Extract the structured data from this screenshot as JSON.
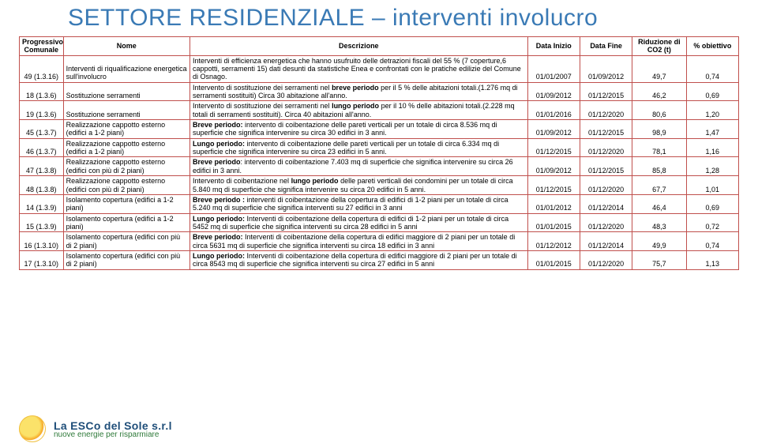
{
  "title": "SETTORE RESIDENZIALE – interventi involucro",
  "columns": [
    "Progressivo Comunale",
    "Nome",
    "Descrizione",
    "Data Inizio",
    "Data Fine",
    "Riduzione di CO2 (t)",
    "% obiettivo"
  ],
  "rows": [
    {
      "prog": "49 (1.3.16)",
      "nome": "Interventi di riqualificazione energetica sull'involucro",
      "desc": "Interventi di efficienza energetica che hanno usufruito delle detrazioni fiscali del 55 % (7 coperture,6 cappotti, serramenti 15) dati desunti da statistiche Enea e confrontati con le pratiche edilizie del Comune di Osnago.",
      "di": "01/01/2007",
      "df": "01/09/2012",
      "co2": "49,7",
      "obj": "0,74"
    },
    {
      "prog": "18 (1.3.6)",
      "nome": "Sostituzione serramenti",
      "desc_html": "Intervento di sostituzione dei serramenti nel <b>breve periodo</b> per il 5 % delle abitazioni totali.(1.276 mq di serramenti sostituiti) Circa 30 abitazione all'anno.",
      "di": "01/09/2012",
      "df": "01/12/2015",
      "co2": "46,2",
      "obj": "0,69"
    },
    {
      "prog": "19 (1.3.6)",
      "nome": "Sostituzione serramenti",
      "desc_html": "Intervento di sostituzione dei serramenti nel <b>lungo periodo</b> per il 10 % delle abitazioni totali.(2.228 mq totali di serramenti sostituiti). Circa 40 abitazioni all'anno.",
      "di": "01/01/2016",
      "df": "01/12/2020",
      "co2": "80,6",
      "obj": "1,20"
    },
    {
      "prog": "45 (1.3.7)",
      "nome": "Realizzazione cappotto esterno (edifici a 1-2 piani)",
      "desc_html": "<b>Breve periodo:</b> intervento di coibentazione delle pareti verticali per un totale di circa 8.536  mq di superficie che significa intervenire su circa 30 edifici in 3 anni.",
      "di": "01/09/2012",
      "df": "01/12/2015",
      "co2": "98,9",
      "obj": "1,47"
    },
    {
      "prog": "46 (1.3.7)",
      "nome": "Realizzazione cappotto esterno (edifici a 1-2 piani)",
      "desc_html": "<b>Lungo periodo:</b> intervento di coibentazione delle pareti verticali per un totale di circa 6.334 mq di superficie che significa intervenire su circa 23 edifici in 5 anni.",
      "di": "01/12/2015",
      "df": "01/12/2020",
      "co2": "78,1",
      "obj": "1,16"
    },
    {
      "prog": "47 (1.3.8)",
      "nome": "Realizzazione cappotto esterno (edifici con più di 2 piani)",
      "desc_html": "<b>Breve periodo</b>: intervento di coibentazione 7.403 mq di superficie che significa intervenire su circa 26 edifici in 3 anni.",
      "di": "01/09/2012",
      "df": "01/12/2015",
      "co2": "85,8",
      "obj": "1,28"
    },
    {
      "prog": "48 (1.3.8)",
      "nome": "Realizzazione cappotto esterno (edifici con più di 2 piani)",
      "desc_html": "Intervento di coibentazione nel <b>lungo periodo</b> delle pareti verticali dei condomini per un totale di circa 5.840 mq di superficie che significa intervenire su circa 20 edifici in 5 anni.",
      "di": "01/12/2015",
      "df": "01/12/2020",
      "co2": "67,7",
      "obj": "1,01"
    },
    {
      "prog": "14 (1.3.9)",
      "nome": "Isolamento copertura (edifici a 1-2 piani)",
      "desc_html": "<b>Breve periodo :</b> interventi di coibentazione della copertura di edifici di 1-2 piani per un totale di circa 5.240 mq di superficie che significa interventi su 27 edifici in 3 anni",
      "di": "01/01/2012",
      "df": "01/12/2014",
      "co2": "46,4",
      "obj": "0,69"
    },
    {
      "prog": "15 (1.3.9)",
      "nome": "Isolamento copertura (edifici a 1-2 piani)",
      "desc_html": "<b>Lungo periodo:</b> Interventi di coibentazione della copertura di edifici di 1-2 piani per un totale di circa 5452 mq di superficie che significa interventi su circa 28 edifici in 5 anni",
      "di": "01/01/2015",
      "df": "01/12/2020",
      "co2": "48,3",
      "obj": "0,72"
    },
    {
      "prog": "16 (1.3.10)",
      "nome": "Isolamento copertura (edifici con più di 2 piani)",
      "desc_html": "<b>Breve periodo:</b> Interventi di coibentazione della copertura di edifici maggiore di 2 piani per un totale di circa 5631 mq di superficie che significa interventi su circa 18 edifici in 3 anni",
      "di": "01/12/2012",
      "df": "01/12/2014",
      "co2": "49,9",
      "obj": "0,74"
    },
    {
      "prog": "17 (1.3.10)",
      "nome": "Isolamento copertura (edifici con più di 2 piani)",
      "desc_html": "<b>Lungo periodo:</b> Interventi di coibentazione della copertura di edifici maggiore di 2 piani per un totale di circa 8543 mq di superficie che significa interventi su circa  27 edifici in 5 anni",
      "di": "01/01/2015",
      "df": "01/12/2020",
      "co2": "75,7",
      "obj": "1,13"
    }
  ],
  "brand": {
    "name": "La ESCo del Sole s.r.l",
    "tag": "nuove energie per risparmiare"
  },
  "style": {
    "title_color": "#3a7ab5",
    "border_color": "#c0504d",
    "brand_name_color": "#1f4e79",
    "brand_tag_color": "#2f7a3a",
    "title_fontsize": 30,
    "cell_fontsize": 9
  }
}
